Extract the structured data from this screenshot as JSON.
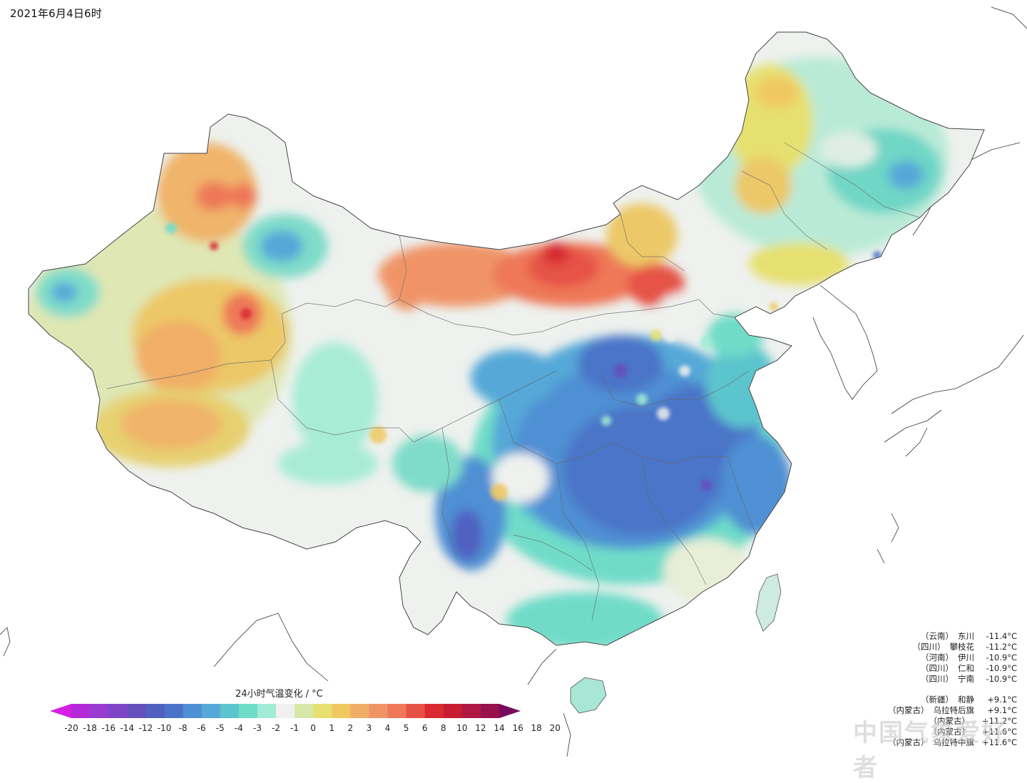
{
  "title": "2021年6月4日6时",
  "legend": {
    "title": "24小时气温变化 / °C",
    "ticks": [
      "-20",
      "-18",
      "-16",
      "-14",
      "-12",
      "-10",
      "-8",
      "-6",
      "-5",
      "-4",
      "-3",
      "-2",
      "-1",
      "0",
      "1",
      "2",
      "3",
      "4",
      "5",
      "6",
      "8",
      "10",
      "12",
      "14",
      "16",
      "18",
      "20"
    ],
    "colors": [
      "#d61fe6",
      "#b42ad8",
      "#9a3bd0",
      "#7f45c8",
      "#6650bc",
      "#5060c0",
      "#4b74c8",
      "#4f8fd3",
      "#55a8d8",
      "#5bc4cc",
      "#6fdcc8",
      "#a2ebd6",
      "#f0f0f0",
      "#d8e6a8",
      "#e6e070",
      "#f0c860",
      "#f0ae66",
      "#f09468",
      "#ee7858",
      "#e65246",
      "#d82a30",
      "#c81c30",
      "#b01844",
      "#98104c",
      "#780c5c"
    ]
  },
  "cooling_extremes": [
    {
      "province": "（云南）",
      "station": "东川",
      "value": "-11.4°C"
    },
    {
      "province": "（四川）",
      "station": "攀枝花",
      "value": "-11.2°C"
    },
    {
      "province": "（河南）",
      "station": "伊川",
      "value": "-10.9°C"
    },
    {
      "province": "（四川）",
      "station": "仁和",
      "value": "-10.9°C"
    },
    {
      "province": "（四川）",
      "station": "宁南",
      "value": "-10.9°C"
    }
  ],
  "warming_extremes": [
    {
      "province": "（新疆）",
      "station": "和静",
      "value": "+9.1°C"
    },
    {
      "province": "（内蒙古）",
      "station": "乌拉特后旗",
      "value": "+9.1°C"
    },
    {
      "province": "（内蒙古）",
      "station": "",
      "value": "+11.2°C"
    },
    {
      "province": "（内蒙古）",
      "station": "",
      "value": "+11.6°C"
    },
    {
      "province": "（内蒙古）",
      "station": "乌拉特中旗",
      "value": "+11.6°C"
    }
  ],
  "watermark": "中国气象爱好者",
  "colors": {
    "warm_core": "#e65246",
    "hot_core": "#d82a30",
    "cool_core": "#4b74c8",
    "cold_core": "#5060c0",
    "neutral": "#f0f0f0",
    "border": "#555555"
  }
}
